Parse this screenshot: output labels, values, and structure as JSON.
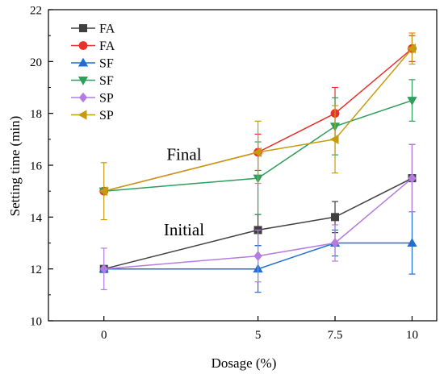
{
  "chart_data": {
    "type": "line",
    "title": "",
    "xlabel": "Dosage (%)",
    "ylabel": "Setting time (min)",
    "x": [
      0,
      5,
      7.5,
      10
    ],
    "x_tick_labels": [
      "0",
      "5",
      "7.5",
      "10"
    ],
    "xlim": [
      -1.8,
      10.8
    ],
    "ylim": [
      10,
      22
    ],
    "y_ticks": [
      10,
      12,
      14,
      16,
      18,
      20,
      22
    ],
    "grid": false,
    "legend_position": "top-left",
    "annotations": [
      {
        "text": "Final",
        "x": 2.6,
        "y": 16.2
      },
      {
        "text": "Initial",
        "x": 2.6,
        "y": 13.3
      }
    ],
    "series": [
      {
        "name": "FA",
        "marker": "square",
        "color": "#404040",
        "values": [
          12.0,
          13.5,
          14.0,
          15.5
        ],
        "errors": [
          0.0,
          0.6,
          0.6,
          1.3
        ]
      },
      {
        "name": "FA",
        "marker": "circle",
        "color": "#e8312a",
        "values": [
          15.0,
          16.5,
          18.0,
          20.5
        ],
        "errors": [
          0.0,
          0.7,
          1.0,
          0.5
        ]
      },
      {
        "name": "SF",
        "marker": "triangle-up",
        "color": "#1f6fd6",
        "values": [
          12.0,
          12.0,
          13.0,
          13.0
        ],
        "errors": [
          0.0,
          0.9,
          0.5,
          1.2
        ]
      },
      {
        "name": "SF",
        "marker": "triangle-down",
        "color": "#2e9e5a",
        "values": [
          15.0,
          15.5,
          17.5,
          18.5
        ],
        "errors": [
          0.0,
          1.4,
          1.1,
          0.8
        ]
      },
      {
        "name": "SP",
        "marker": "diamond",
        "color": "#b57ce0",
        "values": [
          12.0,
          12.5,
          13.0,
          15.5
        ],
        "errors": [
          0.8,
          1.0,
          0.7,
          1.3
        ]
      },
      {
        "name": "SP",
        "marker": "triangle-left",
        "color": "#c89a10",
        "values": [
          15.0,
          16.5,
          17.0,
          20.5
        ],
        "errors": [
          1.1,
          1.2,
          1.3,
          0.6
        ]
      }
    ]
  }
}
